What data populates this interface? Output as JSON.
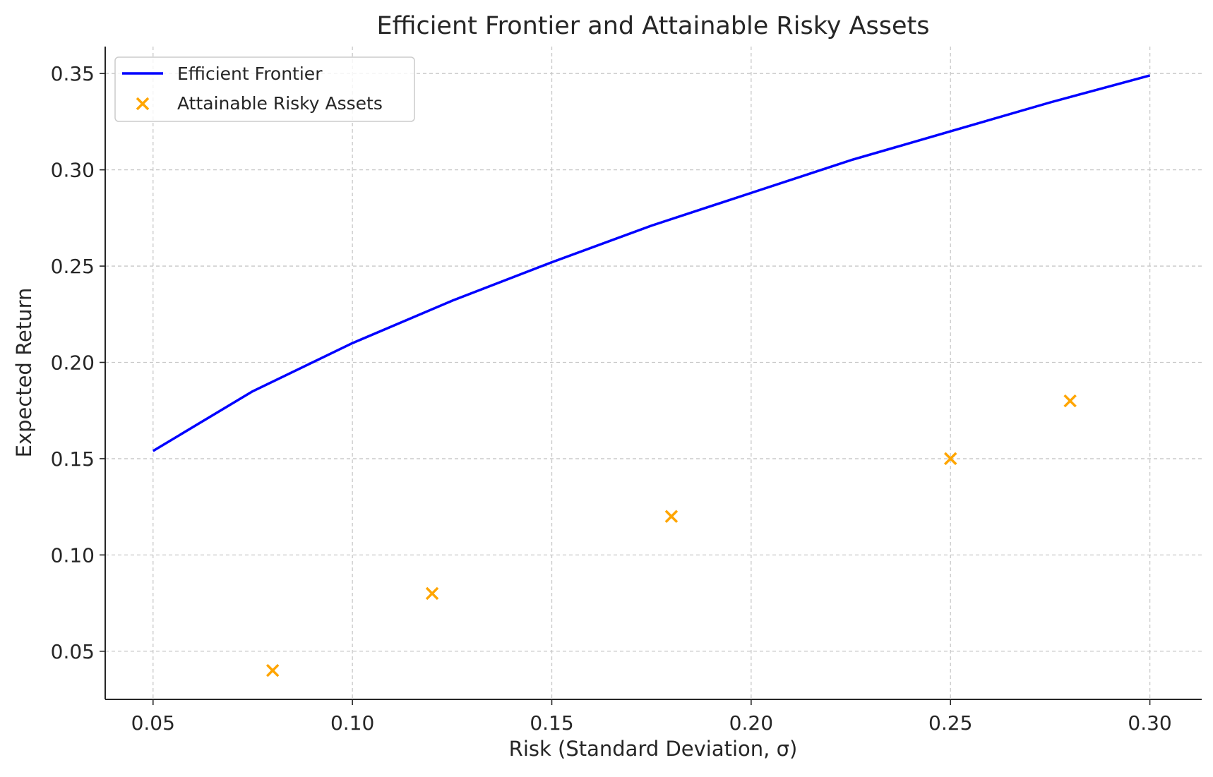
{
  "chart_data": {
    "type": "line",
    "title": "Efficient Frontier and Attainable Risky Assets",
    "xlabel": "Risk (Standard Deviation, σ)",
    "ylabel": "Expected Return",
    "xlim": [
      0.038,
      0.313
    ],
    "ylim": [
      0.025,
      0.364
    ],
    "xticks": [
      "0.05",
      "0.10",
      "0.15",
      "0.20",
      "0.25",
      "0.30"
    ],
    "yticks": [
      "0.05",
      "0.10",
      "0.15",
      "0.20",
      "0.25",
      "0.30",
      "0.35"
    ],
    "grid": true,
    "legend_position": "top-left",
    "series": [
      {
        "name": "Efficient Frontier",
        "kind": "line",
        "color": "#0000ff",
        "x": [
          0.05,
          0.075,
          0.1,
          0.125,
          0.15,
          0.175,
          0.2,
          0.225,
          0.25,
          0.275,
          0.3
        ],
        "y": [
          0.154,
          0.185,
          0.21,
          0.232,
          0.252,
          0.271,
          0.288,
          0.305,
          0.32,
          0.335,
          0.349
        ]
      },
      {
        "name": "Attainable Risky Assets",
        "kind": "scatter",
        "marker": "x",
        "color": "#ffa500",
        "x": [
          0.08,
          0.12,
          0.18,
          0.25,
          0.28
        ],
        "y": [
          0.04,
          0.08,
          0.12,
          0.15,
          0.18
        ]
      }
    ]
  }
}
